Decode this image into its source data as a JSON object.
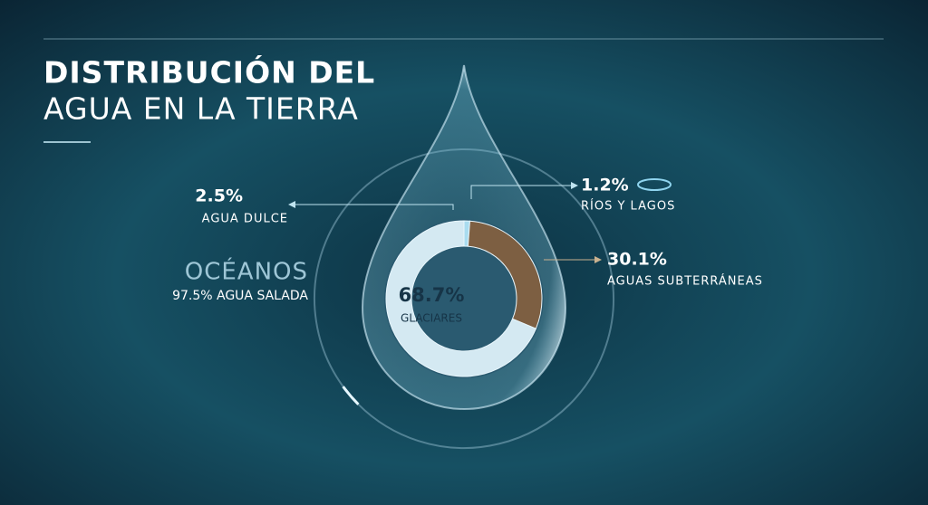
{
  "chart_data": {
    "type": "pie",
    "title": [
      "DISTRIBUCIÓN DEL",
      "AGUA EN LA TIERRA"
    ],
    "categories": [
      "RÍOS Y LAGOS",
      "AGUAS SUBTERRÁNEAS",
      "GLACIARES"
    ],
    "values": [
      1.2,
      30.1,
      68.7
    ],
    "value_labels": [
      "1.2%",
      "30.1%",
      "68.7%"
    ],
    "colors": [
      "#a9dcef",
      "#7d5f42",
      "#d4e9f2"
    ],
    "annotations": [
      {
        "value": 2.5,
        "label": "2.5%",
        "text": "AGUA DULCE"
      },
      {
        "title": "OCÉANOS",
        "value": 97.5,
        "label": "97.5%",
        "text": "AGUA SALADA"
      }
    ]
  }
}
